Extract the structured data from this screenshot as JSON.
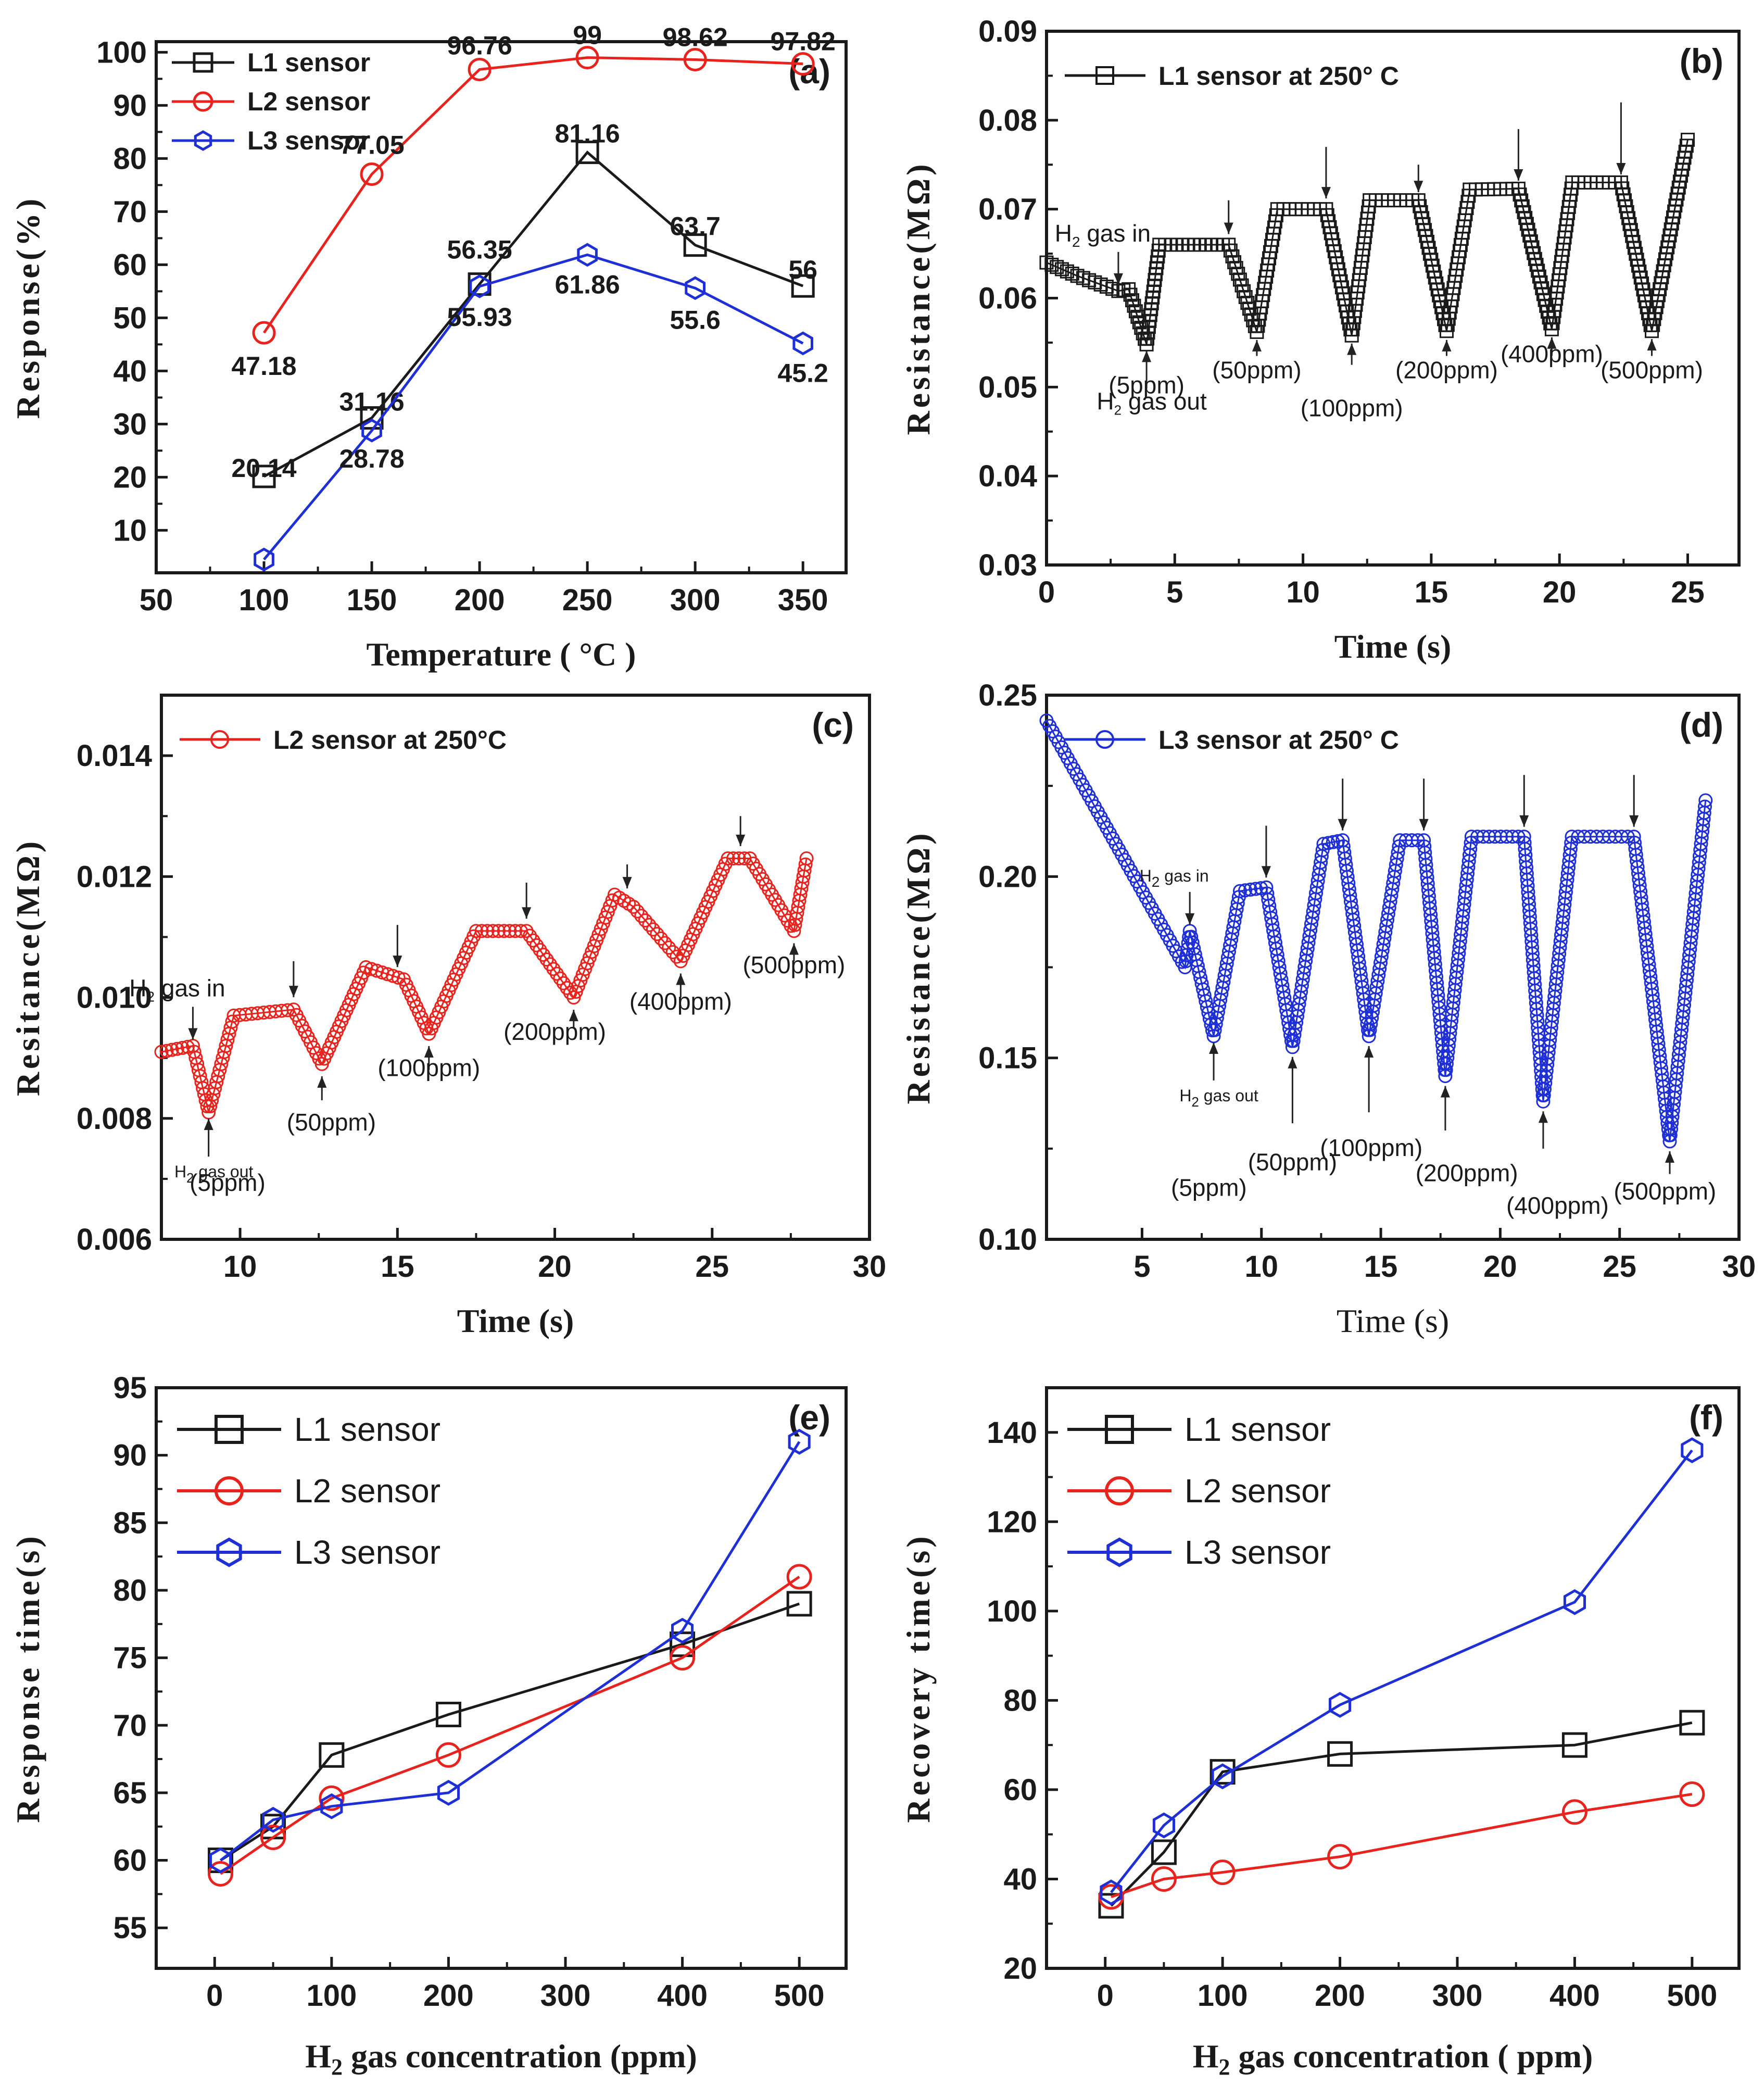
{
  "panels": {
    "a": {
      "label": "(a)",
      "xlabel": "Temperature ( °C )",
      "ylabel": "Response(%)"
    },
    "b": {
      "label": "(b)",
      "xlabel": "Time (s)",
      "ylabel": "Resistance(MΩ)",
      "legend": "L1 sensor at 250° C"
    },
    "c": {
      "label": "(c)",
      "xlabel": "Time (s)",
      "ylabel": "Resitance(MΩ)",
      "legend": "L2 sensor at 250°C"
    },
    "d": {
      "label": "(d)",
      "xlabel": "Time (s)",
      "ylabel": "Resistance(MΩ)",
      "legend": "L3 sensor at 250° C"
    },
    "e": {
      "label": "(e)",
      "xlabel": "H2 gas concentration (ppm)",
      "ylabel": "Response time(s)"
    },
    "f": {
      "label": "(f)",
      "xlabel": "H2 gas concentration ( ppm)",
      "ylabel": "Recovery time(s)"
    }
  },
  "colors": {
    "L1": "#1a1a1a",
    "L2": "#e8231e",
    "L3": "#1f2fd6"
  },
  "annotations": {
    "gas_in": "H2 gas in",
    "gas_out": "H2 gas out",
    "b": [
      "(5ppm)",
      "(50ppm)",
      "(100ppm)",
      "(200ppm)",
      "(400ppm)",
      "(500ppm)"
    ],
    "c": [
      "(5ppm)",
      "(50ppm)",
      "(100ppm)",
      "(200ppm)",
      "(400ppm)",
      "(500ppm)"
    ],
    "d": [
      "(5ppm)",
      "(50ppm)",
      "(100ppm)",
      "(200ppm)",
      "(400ppm)",
      "(500ppm)"
    ]
  },
  "chart_data": [
    {
      "panel": "a",
      "type": "line",
      "xlabel": "Temperature ( °C )",
      "ylabel": "Response(%)",
      "xlim": [
        50,
        370
      ],
      "ylim": [
        2,
        102
      ],
      "xticks": [
        50,
        100,
        150,
        200,
        250,
        300,
        350
      ],
      "yticks": [
        10,
        20,
        30,
        40,
        50,
        60,
        70,
        80,
        90,
        100
      ],
      "legend_position": "top-left",
      "x": [
        100,
        150,
        200,
        250,
        300,
        350
      ],
      "series": [
        {
          "name": "L1 sensor",
          "marker": "square",
          "values": [
            20.14,
            31.16,
            56.35,
            81.16,
            63.7,
            56
          ],
          "labels": [
            "20.14",
            "31.16",
            "56.35",
            "81.16",
            "63.7",
            "56"
          ]
        },
        {
          "name": "L2 sensor",
          "marker": "circle",
          "values": [
            47.18,
            77.05,
            96.76,
            99,
            98.62,
            97.82
          ],
          "labels": [
            "47.18",
            "77.05",
            "96.76",
            "99",
            "98.62",
            "97.82"
          ]
        },
        {
          "name": "L3 sensor",
          "marker": "hexagon",
          "values": [
            4.5,
            28.78,
            55.93,
            61.86,
            55.6,
            45.2
          ],
          "labels": [
            "",
            "28.78",
            "55.93",
            "61.86",
            "55.6",
            "45.2"
          ]
        }
      ]
    },
    {
      "panel": "b",
      "type": "line",
      "xlabel": "Time (s)",
      "ylabel": "Resistance(MΩ)",
      "xlim": [
        0,
        27
      ],
      "ylim": [
        0.03,
        0.09
      ],
      "xticks": [
        0,
        5,
        10,
        15,
        20,
        25
      ],
      "yticks": [
        0.03,
        0.04,
        0.05,
        0.06,
        0.07,
        0.08,
        0.09
      ],
      "legend_position": "top-left",
      "series": [
        {
          "name": "L1 sensor at 250° C",
          "marker": "square",
          "points": [
            [
              0,
              0.064
            ],
            [
              1.2,
              0.0625
            ],
            [
              2.8,
              0.0608
            ],
            [
              3.2,
              0.061
            ],
            [
              3.9,
              0.0548
            ],
            [
              4.4,
              0.066
            ],
            [
              7.1,
              0.066
            ],
            [
              8.2,
              0.0562
            ],
            [
              9.0,
              0.07
            ],
            [
              10.9,
              0.07
            ],
            [
              11.9,
              0.0558
            ],
            [
              12.6,
              0.071
            ],
            [
              14.5,
              0.071
            ],
            [
              15.6,
              0.0563
            ],
            [
              16.5,
              0.0722
            ],
            [
              18.4,
              0.0723
            ],
            [
              19.7,
              0.0565
            ],
            [
              20.5,
              0.073
            ],
            [
              22.4,
              0.073
            ],
            [
              23.6,
              0.0563
            ],
            [
              25,
              0.0778
            ]
          ]
        }
      ]
    },
    {
      "panel": "c",
      "type": "line",
      "xlabel": "Time (s)",
      "ylabel": "Resitance(MΩ)",
      "xlim": [
        7.5,
        30
      ],
      "ylim": [
        0.006,
        0.015
      ],
      "xticks": [
        10,
        15,
        20,
        25,
        30
      ],
      "yticks": [
        0.006,
        0.008,
        0.01,
        0.012,
        0.014
      ],
      "legend_position": "top-left",
      "series": [
        {
          "name": "L2 sensor at 250°C",
          "marker": "circle",
          "points": [
            [
              7.5,
              0.0091
            ],
            [
              8.5,
              0.0092
            ],
            [
              9.0,
              0.0081
            ],
            [
              9.8,
              0.0097
            ],
            [
              11.7,
              0.0098
            ],
            [
              12.6,
              0.0089
            ],
            [
              14.0,
              0.0105
            ],
            [
              15.2,
              0.0103
            ],
            [
              16.0,
              0.0094
            ],
            [
              17.5,
              0.0111
            ],
            [
              19.1,
              0.0111
            ],
            [
              20.6,
              0.01
            ],
            [
              21.9,
              0.0117
            ],
            [
              22.5,
              0.0115
            ],
            [
              24.0,
              0.0106
            ],
            [
              25.5,
              0.0123
            ],
            [
              26.2,
              0.0123
            ],
            [
              27.6,
              0.0111
            ],
            [
              28.0,
              0.0123
            ]
          ]
        }
      ]
    },
    {
      "panel": "d",
      "type": "line",
      "xlabel": "Time (s)",
      "ylabel": "Resistance(MΩ)",
      "xlim": [
        1,
        30
      ],
      "ylim": [
        0.1,
        0.25
      ],
      "xticks": [
        5,
        10,
        15,
        20,
        25,
        30
      ],
      "yticks": [
        0.1,
        0.15,
        0.2,
        0.25
      ],
      "legend_position": "top-left",
      "series": [
        {
          "name": "L3 sensor at 250° C",
          "marker": "circle",
          "points": [
            [
              1,
              0.243
            ],
            [
              6.8,
              0.175
            ],
            [
              7.0,
              0.185
            ],
            [
              8.0,
              0.156
            ],
            [
              9.1,
              0.196
            ],
            [
              10.2,
              0.197
            ],
            [
              11.3,
              0.153
            ],
            [
              12.6,
              0.209
            ],
            [
              13.4,
              0.21
            ],
            [
              14.5,
              0.156
            ],
            [
              15.8,
              0.21
            ],
            [
              16.8,
              0.21
            ],
            [
              17.7,
              0.145
            ],
            [
              18.8,
              0.211
            ],
            [
              21.0,
              0.211
            ],
            [
              21.8,
              0.138
            ],
            [
              23.0,
              0.211
            ],
            [
              25.6,
              0.211
            ],
            [
              27.1,
              0.127
            ],
            [
              28.6,
              0.221
            ]
          ]
        }
      ]
    },
    {
      "panel": "e",
      "type": "line",
      "xlabel": "H2 gas concentration (ppm)",
      "ylabel": "Response time(s)",
      "xlim": [
        -50,
        540
      ],
      "ylim": [
        52,
        95
      ],
      "xticks": [
        0,
        100,
        200,
        300,
        400,
        500
      ],
      "yticks": [
        55,
        60,
        65,
        70,
        75,
        80,
        85,
        90,
        95
      ],
      "legend_position": "top-left",
      "x": [
        5,
        50,
        100,
        200,
        400,
        500
      ],
      "series": [
        {
          "name": "L1 sensor",
          "marker": "square",
          "values": [
            60,
            62.5,
            67.8,
            70.8,
            76,
            79
          ]
        },
        {
          "name": "L2 sensor",
          "marker": "circle",
          "values": [
            59,
            61.7,
            64.6,
            67.8,
            75,
            81
          ]
        },
        {
          "name": "L3 sensor",
          "marker": "hexagon",
          "values": [
            60,
            63,
            64,
            65,
            77,
            91
          ]
        }
      ]
    },
    {
      "panel": "f",
      "type": "line",
      "xlabel": "H2 gas concentration ( ppm)",
      "ylabel": "Recovery time(s)",
      "xlim": [
        -50,
        540
      ],
      "ylim": [
        20,
        150
      ],
      "xticks": [
        0,
        100,
        200,
        300,
        400,
        500
      ],
      "yticks": [
        20,
        40,
        60,
        80,
        100,
        120,
        140
      ],
      "legend_position": "top-left",
      "x": [
        5,
        50,
        100,
        200,
        400,
        500
      ],
      "series": [
        {
          "name": "L1 sensor",
          "marker": "square",
          "values": [
            34,
            46,
            64,
            68,
            70,
            75
          ]
        },
        {
          "name": "L2 sensor",
          "marker": "circle",
          "values": [
            36,
            40,
            41.5,
            45,
            55,
            59
          ]
        },
        {
          "name": "L3 sensor",
          "marker": "hexagon",
          "values": [
            37,
            52,
            63,
            79,
            102,
            136
          ]
        }
      ]
    }
  ]
}
